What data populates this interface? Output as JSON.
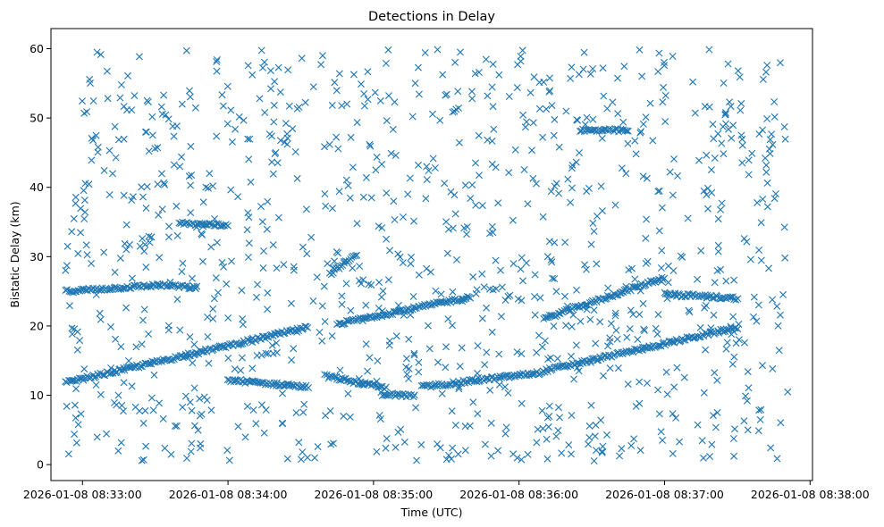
{
  "chart_data": {
    "type": "scatter",
    "title": "Detections in Delay",
    "xlabel": "Time (UTC)",
    "ylabel": "Bistatic Delay (km)",
    "marker": "x",
    "series_color": "#1f77b4",
    "grid": false,
    "legend": "none",
    "xlim": [
      "2026-01-08 08:32:47",
      "2026-01-08 08:38:01"
    ],
    "ylim": [
      -2.3,
      62.9
    ],
    "x_ticks": [
      "2026-01-08 08:33:00",
      "2026-01-08 08:34:00",
      "2026-01-08 08:35:00",
      "2026-01-08 08:36:00",
      "2026-01-08 08:37:00",
      "2026-01-08 08:38:00"
    ],
    "y_ticks": [
      "0",
      "10",
      "20",
      "30",
      "40",
      "50",
      "60"
    ],
    "x_start": "2026-01-08 08:32:53",
    "x_end": "2026-01-08 08:37:51",
    "tracks": [
      {
        "x": [
          "2026-01-08 08:32:53",
          "2026-01-08 08:34:33"
        ],
        "y": [
          11.8,
          19.8
        ]
      },
      {
        "x": [
          "2026-01-08 08:32:53",
          "2026-01-08 08:33:32"
        ],
        "y": [
          25.0,
          25.9
        ]
      },
      {
        "x": [
          "2026-01-08 08:33:32",
          "2026-01-08 08:33:47"
        ],
        "y": [
          25.9,
          25.5
        ]
      },
      {
        "x": [
          "2026-01-08 08:34:00",
          "2026-01-08 08:34:33"
        ],
        "y": [
          12.2,
          11.2
        ]
      },
      {
        "x": [
          "2026-01-08 08:34:40",
          "2026-01-08 08:35:05"
        ],
        "y": [
          12.8,
          11.0
        ]
      },
      {
        "x": [
          "2026-01-08 08:34:45",
          "2026-01-08 08:35:40"
        ],
        "y": [
          20.3,
          24.2
        ]
      },
      {
        "x": [
          "2026-01-08 08:34:42",
          "2026-01-08 08:34:53"
        ],
        "y": [
          27.5,
          30.3
        ]
      },
      {
        "x": [
          "2026-01-08 08:35:03",
          "2026-01-08 08:35:17"
        ],
        "y": [
          10.2,
          9.9
        ]
      },
      {
        "x": [
          "2026-01-08 08:35:20",
          "2026-01-08 08:36:10"
        ],
        "y": [
          11.2,
          13.3
        ]
      },
      {
        "x": [
          "2026-01-08 08:36:10",
          "2026-01-08 08:37:30"
        ],
        "y": [
          13.5,
          19.8
        ]
      },
      {
        "x": [
          "2026-01-08 08:36:10",
          "2026-01-08 08:37:00"
        ],
        "y": [
          21.0,
          27.0
        ]
      },
      {
        "x": [
          "2026-01-08 08:36:25",
          "2026-01-08 08:36:45"
        ],
        "y": [
          48.2,
          48.2
        ]
      },
      {
        "x": [
          "2026-01-08 08:37:00",
          "2026-01-08 08:37:30"
        ],
        "y": [
          24.6,
          24.0
        ]
      },
      {
        "x": [
          "2026-01-08 08:33:40",
          "2026-01-08 08:34:00"
        ],
        "y": [
          34.8,
          34.5
        ]
      }
    ],
    "scatter_count": 1050
  }
}
